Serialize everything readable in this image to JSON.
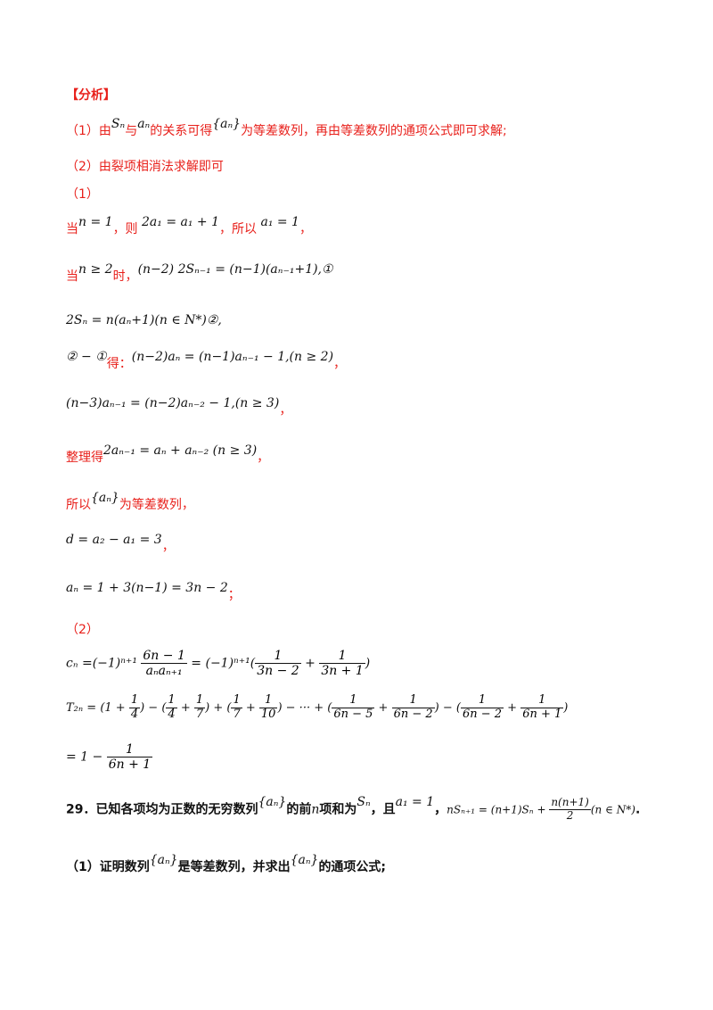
{
  "analysis_heading": "【分析】",
  "analysis": {
    "line1_a": "（1）由",
    "line1_m1": "Sₙ",
    "line1_b": "与",
    "line1_m2": "aₙ",
    "line1_c": "的关系可得",
    "line1_m3": "{aₙ}",
    "line1_d": "为等差数列，再由等差数列的通项公式即可求解;",
    "line2": "（2）由裂项相消法求解即可"
  },
  "part1": {
    "label": "（1）",
    "when_n1_a": "当",
    "when_n1_m1": "n = 1",
    "when_n1_b": "，则",
    "when_n1_m2": "2a₁ = a₁ + 1",
    "when_n1_c": "，所以",
    "when_n1_m3": "a₁ = 1",
    "when_n1_d": "，",
    "when_n2_a": "当",
    "when_n2_m1": "n ≥ 2",
    "when_n2_b": "时，",
    "when_n2_m2": "(n−2) 2Sₙ₋₁ = (n−1)(aₙ₋₁+1),①",
    "eq2": "2Sₙ = n(aₙ+1)(n ∈ N*)②,",
    "sub_m1": "② − ①",
    "sub_a": "得：",
    "sub_m2": "(n−2)aₙ = (n−1)aₙ₋₁ − 1,(n ≥ 2)",
    "sub_b": "，",
    "eq3_m": "(n−3)aₙ₋₁ = (n−2)aₙ₋₂ − 1,(n ≥ 3)",
    "eq3_b": "，",
    "tidy_a": "整理得",
    "tidy_m": "2aₙ₋₁ = aₙ + aₙ₋₂ (n ≥ 3)",
    "tidy_b": "，",
    "so_a": "所以",
    "so_m": "{aₙ}",
    "so_b": "为等差数列，",
    "d_m": "d = a₂ − a₁ = 3",
    "d_b": "，",
    "an_m": "aₙ = 1 + 3(n−1) = 3n − 2",
    "an_b": "；"
  },
  "part2": {
    "label": "（2）",
    "cn_lhs": "cₙ =(−1)ⁿ⁺¹",
    "cn_f1_num": "6n − 1",
    "cn_f1_den": "aₙaₙ₊₁",
    "cn_mid": " = (−1)ⁿ⁺¹(",
    "cn_f2_num": "1",
    "cn_f2_den": "3n − 2",
    "cn_plus": " + ",
    "cn_f3_num": "1",
    "cn_f3_den": "3n + 1",
    "cn_end": ")",
    "t_lhs": "T₂ₙ = ",
    "t_terms": [
      {
        "pre": "(1 + ",
        "fn": "1",
        "fd": "4",
        "post": ") − ("
      },
      {
        "pre": "",
        "fn": "1",
        "fd": "4",
        "post": " + "
      },
      {
        "pre": "",
        "fn": "1",
        "fd": "7",
        "post": ") + ("
      },
      {
        "pre": "",
        "fn": "1",
        "fd": "7",
        "post": " + "
      },
      {
        "pre": "",
        "fn": "1",
        "fd": "10",
        "post": ") − ··· + ("
      },
      {
        "pre": "",
        "fn": "1",
        "fd": "6n − 5",
        "post": " + "
      },
      {
        "pre": "",
        "fn": "1",
        "fd": "6n − 2",
        "post": ") − ("
      },
      {
        "pre": "",
        "fn": "1",
        "fd": "6n − 2",
        "post": " + "
      },
      {
        "pre": "",
        "fn": "1",
        "fd": "6n + 1",
        "post": ")"
      }
    ],
    "res_pre": "= 1 − ",
    "res_num": "1",
    "res_den": "6n + 1"
  },
  "q29": {
    "a": "29．已知各项均为正数的无穷数列",
    "m1": "{aₙ}",
    "b": "的前",
    "m2": "n",
    "c": "项和为",
    "m3": "Sₙ",
    "d": "，且",
    "m4": "a₁ = 1",
    "e": "，",
    "m5_pre": "nSₙ₊₁ = (n+1)Sₙ + ",
    "m5_num": "n(n+1)",
    "m5_den": "2",
    "m5_post": "(n ∈ N*)",
    "f": "."
  },
  "q29_1": {
    "a": "（1）证明数列",
    "m1": "{aₙ}",
    "b": "是等差数列，并求出",
    "m2": "{aₙ}",
    "c": "的通项公式;"
  }
}
